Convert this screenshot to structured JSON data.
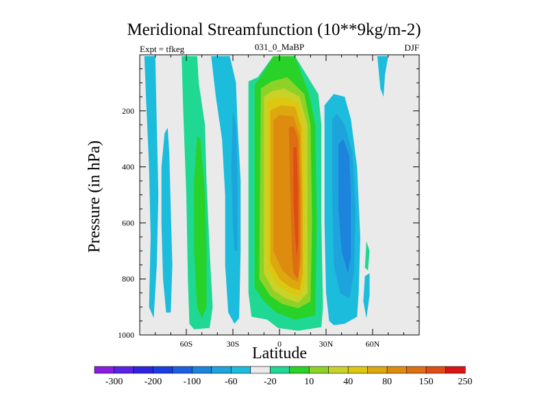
{
  "chart_data": {
    "type": "heatmap",
    "title": "Meridional Streamfunction (10**9kg/m-2)",
    "left_subtitle": "Expt = tfkeg",
    "center_subtitle": "031_0_MaBP",
    "right_subtitle": "DJF",
    "xlabel": "Latitude",
    "ylabel": "Pressure (in hPa)",
    "x_ticks": [
      {
        "value": -60,
        "label": "60S"
      },
      {
        "value": -30,
        "label": "30S"
      },
      {
        "value": 0,
        "label": "0"
      },
      {
        "value": 30,
        "label": "30N"
      },
      {
        "value": 60,
        "label": "60N"
      }
    ],
    "xlim": [
      -90,
      90
    ],
    "y_ticks": [
      200,
      400,
      600,
      800,
      1000
    ],
    "ylim": [
      0,
      1000
    ],
    "y_inverted": true,
    "colorbar": {
      "labels": [
        "-300",
        "-200",
        "-100",
        "-60",
        "-20",
        "10",
        "40",
        "80",
        "150",
        "250"
      ],
      "colors": [
        "#8a1ee0",
        "#5a22e6",
        "#2f24e0",
        "#1a3ee0",
        "#1c60e0",
        "#1c84dc",
        "#1ea4dc",
        "#1cbcdc",
        "#eaeaea",
        "#1ed894",
        "#28d228",
        "#8ed228",
        "#c8d228",
        "#dcc810",
        "#dca80e",
        "#de8c10",
        "#de6e12",
        "#de4e14",
        "#dc1414"
      ]
    },
    "field_regions": [
      {
        "color": "#1cbcdc",
        "points": [
          [
            -87,
            5
          ],
          [
            -86,
            150
          ],
          [
            -84,
            400
          ],
          [
            -83,
            650
          ],
          [
            -84,
            900
          ],
          [
            -81,
            940
          ],
          [
            -79,
            750
          ],
          [
            -78,
            500
          ],
          [
            -79,
            250
          ],
          [
            -80,
            5
          ]
        ]
      },
      {
        "color": "#1cbcdc",
        "points": [
          [
            -74,
            280
          ],
          [
            -76,
            400
          ],
          [
            -76,
            600
          ],
          [
            -75,
            800
          ],
          [
            -73,
            920
          ],
          [
            -70,
            920
          ],
          [
            -69,
            750
          ],
          [
            -70,
            550
          ],
          [
            -71,
            350
          ],
          [
            -72,
            260
          ]
        ]
      },
      {
        "color": "#1ed894",
        "points": [
          [
            -63,
            5
          ],
          [
            -62,
            200
          ],
          [
            -60,
            500
          ],
          [
            -59,
            800
          ],
          [
            -58,
            960
          ],
          [
            -55,
            980
          ],
          [
            -45,
            975
          ],
          [
            -43,
            900
          ],
          [
            -45,
            700
          ],
          [
            -47,
            450
          ],
          [
            -48,
            250
          ],
          [
            -52,
            100
          ],
          [
            -53,
            5
          ]
        ]
      },
      {
        "color": "#28d228",
        "points": [
          [
            -53,
            290
          ],
          [
            -55,
            450
          ],
          [
            -55,
            700
          ],
          [
            -53,
            900
          ],
          [
            -50,
            940
          ],
          [
            -47,
            900
          ],
          [
            -47,
            700
          ],
          [
            -48,
            500
          ],
          [
            -51,
            300
          ]
        ]
      },
      {
        "color": "#1cbcdc",
        "points": [
          [
            -44,
            5
          ],
          [
            -41,
            150
          ],
          [
            -37,
            300
          ],
          [
            -35,
            500
          ],
          [
            -35,
            750
          ],
          [
            -33,
            920
          ],
          [
            -29,
            960
          ],
          [
            -26,
            940
          ],
          [
            -25,
            700
          ],
          [
            -25,
            450
          ],
          [
            -27,
            250
          ],
          [
            -28,
            100
          ],
          [
            -32,
            5
          ]
        ]
      },
      {
        "color": "#1ea4dc",
        "points": [
          [
            -30,
            200
          ],
          [
            -31,
            400
          ],
          [
            -30,
            600
          ],
          [
            -29,
            700
          ],
          [
            -27,
            700
          ],
          [
            -27,
            450
          ],
          [
            -28,
            250
          ]
        ]
      },
      {
        "color": "#1ed894",
        "points": [
          [
            -20,
            95
          ],
          [
            -20,
            850
          ],
          [
            -18,
            935
          ],
          [
            -8,
            945
          ],
          [
            -1,
            975
          ],
          [
            12,
            985
          ],
          [
            27,
            972
          ],
          [
            28,
            900
          ],
          [
            27,
            600
          ],
          [
            27,
            250
          ],
          [
            25,
            140
          ],
          [
            10,
            5
          ],
          [
            -4,
            5
          ],
          [
            -14,
            80
          ]
        ]
      },
      {
        "color": "#28d228",
        "points": [
          [
            -16,
            110
          ],
          [
            -16,
            830
          ],
          [
            -10,
            880
          ],
          [
            -2,
            920
          ],
          [
            10,
            945
          ],
          [
            23,
            930
          ],
          [
            24,
            600
          ],
          [
            23,
            250
          ],
          [
            19,
            140
          ],
          [
            10,
            5
          ],
          [
            -4,
            5
          ],
          [
            -10,
            60
          ]
        ]
      },
      {
        "color": "#8ed228",
        "points": [
          [
            -12,
            120
          ],
          [
            -13,
            800
          ],
          [
            -6,
            860
          ],
          [
            2,
            890
          ],
          [
            12,
            905
          ],
          [
            20,
            880
          ],
          [
            21,
            600
          ],
          [
            20,
            250
          ],
          [
            16,
            140
          ],
          [
            5,
            80
          ],
          [
            -5,
            95
          ]
        ]
      },
      {
        "color": "#c8d228",
        "points": [
          [
            -10,
            150
          ],
          [
            -10,
            780
          ],
          [
            -4,
            840
          ],
          [
            4,
            870
          ],
          [
            12,
            885
          ],
          [
            18,
            850
          ],
          [
            18,
            600
          ],
          [
            18,
            250
          ],
          [
            13,
            150
          ],
          [
            3,
            120
          ],
          [
            -5,
            130
          ]
        ]
      },
      {
        "color": "#dcc810",
        "points": [
          [
            -8,
            170
          ],
          [
            -8,
            760
          ],
          [
            -2,
            820
          ],
          [
            6,
            850
          ],
          [
            13,
            860
          ],
          [
            16,
            820
          ],
          [
            16,
            580
          ],
          [
            16,
            270
          ],
          [
            12,
            170
          ],
          [
            3,
            150
          ],
          [
            -4,
            155
          ]
        ]
      },
      {
        "color": "#dca80e",
        "points": [
          [
            -6,
            200
          ],
          [
            -6,
            740
          ],
          [
            0,
            800
          ],
          [
            7,
            830
          ],
          [
            13,
            840
          ],
          [
            15,
            780
          ],
          [
            15,
            560
          ],
          [
            14,
            260
          ],
          [
            10,
            185
          ],
          [
            1,
            180
          ]
        ]
      },
      {
        "color": "#de8c10",
        "points": [
          [
            -4,
            235
          ],
          [
            -4,
            700
          ],
          [
            2,
            770
          ],
          [
            8,
            800
          ],
          [
            12,
            810
          ],
          [
            14,
            730
          ],
          [
            14,
            520
          ],
          [
            13,
            290
          ],
          [
            9,
            220
          ],
          [
            0,
            215
          ]
        ]
      },
      {
        "color": "#de6e12",
        "points": [
          [
            6,
            260
          ],
          [
            7,
            500
          ],
          [
            8,
            700
          ],
          [
            9,
            780
          ],
          [
            12,
            800
          ],
          [
            13,
            720
          ],
          [
            13,
            470
          ],
          [
            12,
            300
          ],
          [
            9,
            255
          ]
        ]
      },
      {
        "color": "#de4e14",
        "points": [
          [
            9,
            330
          ],
          [
            9,
            520
          ],
          [
            10,
            640
          ],
          [
            11,
            720
          ],
          [
            12,
            680
          ],
          [
            12,
            480
          ],
          [
            11,
            330
          ]
        ]
      },
      {
        "color": "#1cbcdc",
        "points": [
          [
            29,
            180
          ],
          [
            29,
            600
          ],
          [
            30,
            850
          ],
          [
            32,
            950
          ],
          [
            35,
            965
          ],
          [
            42,
            960
          ],
          [
            50,
            935
          ],
          [
            51,
            850
          ],
          [
            52,
            650
          ],
          [
            50,
            400
          ],
          [
            46,
            230
          ],
          [
            42,
            150
          ],
          [
            35,
            140
          ]
        ]
      },
      {
        "color": "#1ea4dc",
        "points": [
          [
            34,
            230
          ],
          [
            34,
            500
          ],
          [
            35,
            750
          ],
          [
            39,
            850
          ],
          [
            45,
            870
          ],
          [
            48,
            780
          ],
          [
            49,
            550
          ],
          [
            47,
            350
          ],
          [
            42,
            250
          ],
          [
            37,
            210
          ]
        ]
      },
      {
        "color": "#1c84dc",
        "points": [
          [
            38,
            320
          ],
          [
            38,
            550
          ],
          [
            40,
            700
          ],
          [
            44,
            780
          ],
          [
            46,
            720
          ],
          [
            46,
            500
          ],
          [
            45,
            360
          ],
          [
            41,
            300
          ]
        ]
      },
      {
        "color": "#1ed894",
        "points": [
          [
            56,
            665
          ],
          [
            55,
            760
          ],
          [
            57,
            770
          ],
          [
            58,
            700
          ]
        ]
      },
      {
        "color": "#1cbcdc",
        "points": [
          [
            55,
            790
          ],
          [
            54,
            880
          ],
          [
            56,
            940
          ],
          [
            58,
            860
          ],
          [
            58,
            780
          ]
        ]
      },
      {
        "color": "#1cbcdc",
        "points": [
          [
            63,
            5
          ],
          [
            65,
            120
          ],
          [
            67,
            150
          ],
          [
            68,
            70
          ],
          [
            70,
            5
          ]
        ]
      }
    ]
  }
}
